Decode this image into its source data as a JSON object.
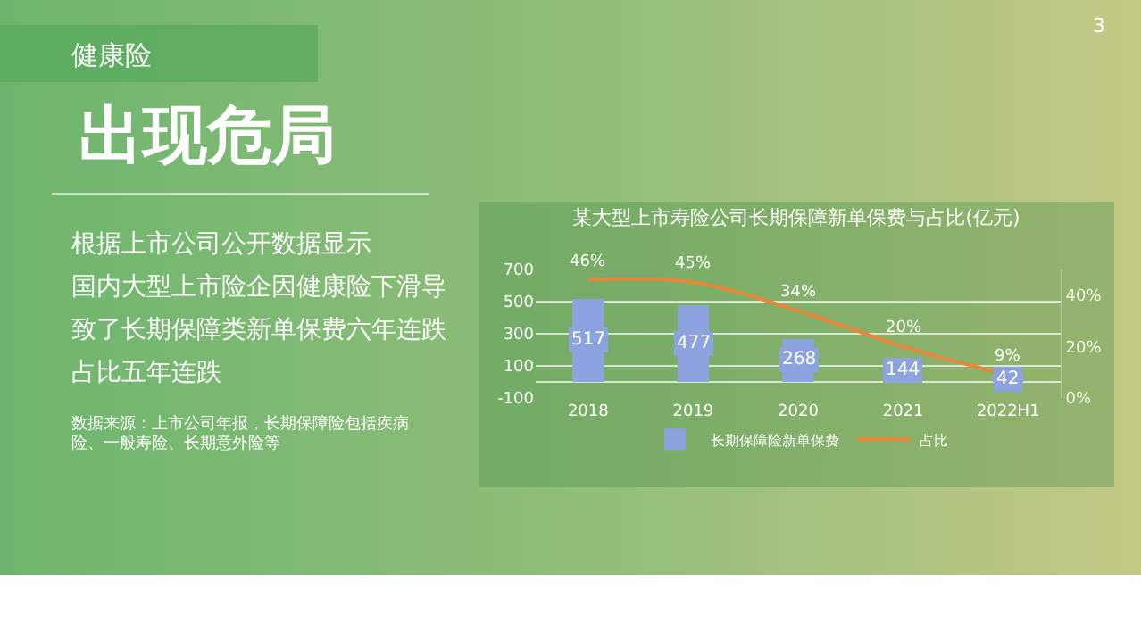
{
  "chart_data": {
    "type": "bar",
    "title": "某大型上市寿险公司长期保障新单保费与占比(亿元)",
    "categories": [
      "2018",
      "2019",
      "2020",
      "2021",
      "2022H1"
    ],
    "series": [
      {
        "name": "长期保障险新单保费",
        "color": "#8da3df",
        "values": [
          517,
          477,
          268,
          144,
          42
        ],
        "value_labels": [
          "517",
          "477",
          "268",
          "144",
          "42"
        ]
      },
      {
        "name": "占比",
        "type": "line",
        "axis": "y2",
        "color": "#e8863a",
        "values": [
          46,
          45,
          34,
          20,
          9
        ],
        "value_labels": [
          "46%",
          "45%",
          "34%",
          "20%",
          "9%"
        ]
      }
    ],
    "ylim": [
      -100,
      700
    ],
    "yticks": [
      -100,
      100,
      300,
      500,
      700
    ],
    "y2lim": [
      0,
      50
    ],
    "y2ticks": [
      {
        "value": 0,
        "label": "0%"
      },
      {
        "value": 20,
        "label": "20%"
      },
      {
        "value": 40,
        "label": "40%"
      }
    ],
    "grid": "y",
    "legend": "bottom",
    "marker": "none",
    "line_style": "solid",
    "annotations": [
      "健康险",
      "出现危局",
      "根据上市公司公开数据显示",
      "国内大型上市险企因健康险下滑导",
      "致了长期保障类新单保费六年连跌",
      "占比五年连跌",
      "数据来源：上市公司年报，长期保障险包括疾病险、一般寿险、长期意外险等",
      "3"
    ]
  }
}
